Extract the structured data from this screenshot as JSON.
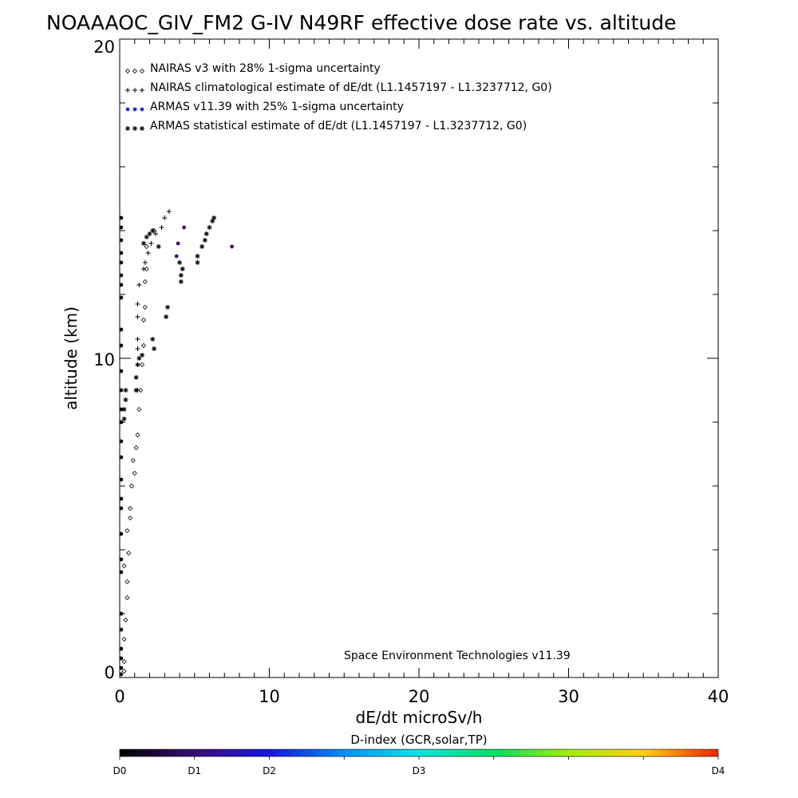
{
  "chart_data": {
    "type": "scatter",
    "title": "NOAAAOC_GIV_FM2 G-IV   N49RF  effective dose rate vs. altitude",
    "xlabel": "dE/dt microSv/h",
    "ylabel": "altitude (km)",
    "xlim": [
      0,
      40
    ],
    "ylim": [
      0,
      20
    ],
    "x_ticks": [
      "0",
      "10",
      "20",
      "30",
      "40"
    ],
    "y_ticks": [
      "0",
      "10",
      "20"
    ],
    "grid": false,
    "legend_placement": "top-left",
    "credit": "Space Environment Technologies v11.39",
    "legend": [
      {
        "label": "NAIRAS v3 with 28% 1-sigma uncertainty",
        "marker": "diamond",
        "color": "#000000"
      },
      {
        "label": "NAIRAS climatological estimate of dE/dt (L1.1457197 - L1.3237712, G0)",
        "marker": "plus",
        "color": "#000000"
      },
      {
        "label": "ARMAS v11.39 with 25% 1-sigma uncertainty",
        "marker": "dot",
        "color": "#1a2ed6"
      },
      {
        "label": "ARMAS statistical estimate of dE/dt (L1.1457197 - L1.3237712, G0)",
        "marker": "asterisk",
        "color": "#000000"
      }
    ],
    "colorbar": {
      "title": "D-index (GCR,solar,TP)",
      "labels": [
        "D0",
        "D1",
        "D2",
        "D3",
        "D4"
      ],
      "label_positions": [
        0,
        0.125,
        0.25,
        0.5,
        1
      ]
    },
    "series": [
      {
        "name": "NAIRAS v3 with 28% 1-sigma uncertainty",
        "marker": "diamond",
        "x": [
          0.3,
          0.3,
          0.4,
          0.5,
          0.3,
          0.6,
          0.5,
          0.7,
          0.8,
          1.0,
          1.1,
          1.2,
          1.3,
          1.4,
          1.5,
          1.6,
          1.6,
          1.7,
          1.7,
          1.8,
          1.8,
          2.3,
          0.3,
          0.5,
          0.7,
          0.9
        ],
        "y": [
          0.5,
          1.2,
          1.8,
          2.5,
          3.5,
          3.9,
          4.6,
          5.3,
          6.0,
          6.4,
          7.2,
          7.6,
          8.4,
          9.0,
          9.8,
          10.4,
          11.2,
          11.6,
          12.4,
          12.8,
          13.5,
          14.0,
          0.2,
          3.0,
          5.0,
          6.8
        ]
      },
      {
        "name": "NAIRAS climatological estimate of dE/dt (L1.1457197 - L1.3237712, G0)",
        "marker": "plus",
        "x": [
          1.2,
          1.2,
          1.2,
          1.2,
          1.2,
          1.2,
          1.3,
          1.6,
          1.7,
          1.9,
          2.1,
          2.4,
          2.8,
          3.0,
          3.3
        ],
        "y": [
          9.0,
          9.8,
          10.3,
          10.6,
          11.3,
          11.7,
          12.3,
          12.8,
          13.0,
          13.3,
          13.6,
          13.9,
          14.1,
          14.4,
          14.6
        ]
      },
      {
        "name": "ARMAS v11.39 with 25% 1-sigma uncertainty",
        "marker": "dot",
        "x": [
          0.1,
          0.1,
          0.1,
          0.1,
          0.1,
          0.1,
          0.1,
          0.1,
          0.1,
          0.1,
          0.1,
          0.1,
          0.1,
          0.1,
          0.1,
          0.1,
          0.1,
          0.1,
          0.1,
          0.1,
          0.1,
          0.1,
          0.1,
          0.1,
          0.1,
          0.1,
          0.1,
          0.1,
          3.8,
          3.9,
          4.3,
          7.5
        ],
        "y": [
          0.1,
          0.3,
          0.6,
          0.9,
          1.5,
          2.0,
          3.3,
          3.7,
          4.5,
          5.3,
          5.6,
          6.2,
          6.9,
          7.4,
          8.0,
          8.4,
          9.0,
          9.6,
          10.4,
          10.9,
          11.9,
          12.3,
          12.6,
          13.0,
          13.3,
          13.7,
          14.1,
          14.4,
          13.2,
          13.6,
          14.1,
          13.5
        ]
      },
      {
        "name": "ARMAS statistical estimate of dE/dt (L1.1457197 - L1.3237712, G0)",
        "marker": "asterisk",
        "x": [
          0.3,
          0.3,
          0.4,
          0.4,
          1.1,
          1.1,
          1.2,
          1.3,
          1.5,
          2.2,
          2.3,
          3.1,
          3.2,
          4.1,
          4.1,
          5.2,
          5.2,
          5.5,
          5.7,
          5.8,
          6.0,
          6.2,
          6.3,
          1.6,
          1.8,
          2.0,
          2.2,
          2.6,
          4.2,
          4.0
        ],
        "y": [
          8.1,
          8.4,
          8.7,
          9.0,
          9.0,
          9.4,
          9.8,
          10.0,
          10.1,
          10.6,
          10.3,
          11.3,
          11.6,
          12.4,
          12.6,
          13.0,
          13.2,
          13.5,
          13.7,
          13.9,
          14.1,
          14.3,
          14.4,
          13.6,
          13.8,
          13.9,
          14.0,
          13.5,
          12.8,
          13.0
        ]
      }
    ]
  }
}
